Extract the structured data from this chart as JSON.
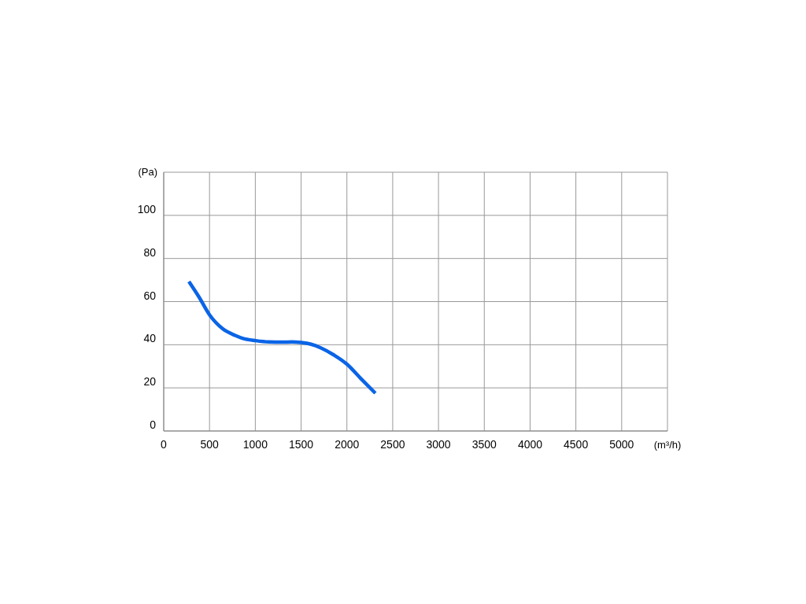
{
  "chart_data": {
    "type": "line",
    "xlabel": "(m³/h)",
    "ylabel": "(Pa)",
    "x": [
      275,
      387,
      498,
      644,
      780,
      859,
      1005,
      1150,
      1289,
      1400,
      1503,
      1610,
      1718,
      1860,
      2000,
      2148,
      2311
    ],
    "series": [
      {
        "color": "#0a64e6",
        "values": [
          69.3,
          62,
          54,
          47.4,
          44.3,
          43,
          41.9,
          41.3,
          41.2,
          41.3,
          41,
          40.2,
          38.5,
          35.2,
          31,
          24.5,
          17.5
        ]
      }
    ],
    "xlim": [
      0,
      5500
    ],
    "xticks": [
      0,
      500,
      1000,
      1500,
      2000,
      2500,
      3000,
      3500,
      4000,
      4500,
      5000
    ],
    "ylim": [
      0,
      120
    ],
    "yticks": [
      0,
      20,
      40,
      60,
      80,
      100
    ],
    "grid": true,
    "marker": "none",
    "line_style": "solid"
  }
}
